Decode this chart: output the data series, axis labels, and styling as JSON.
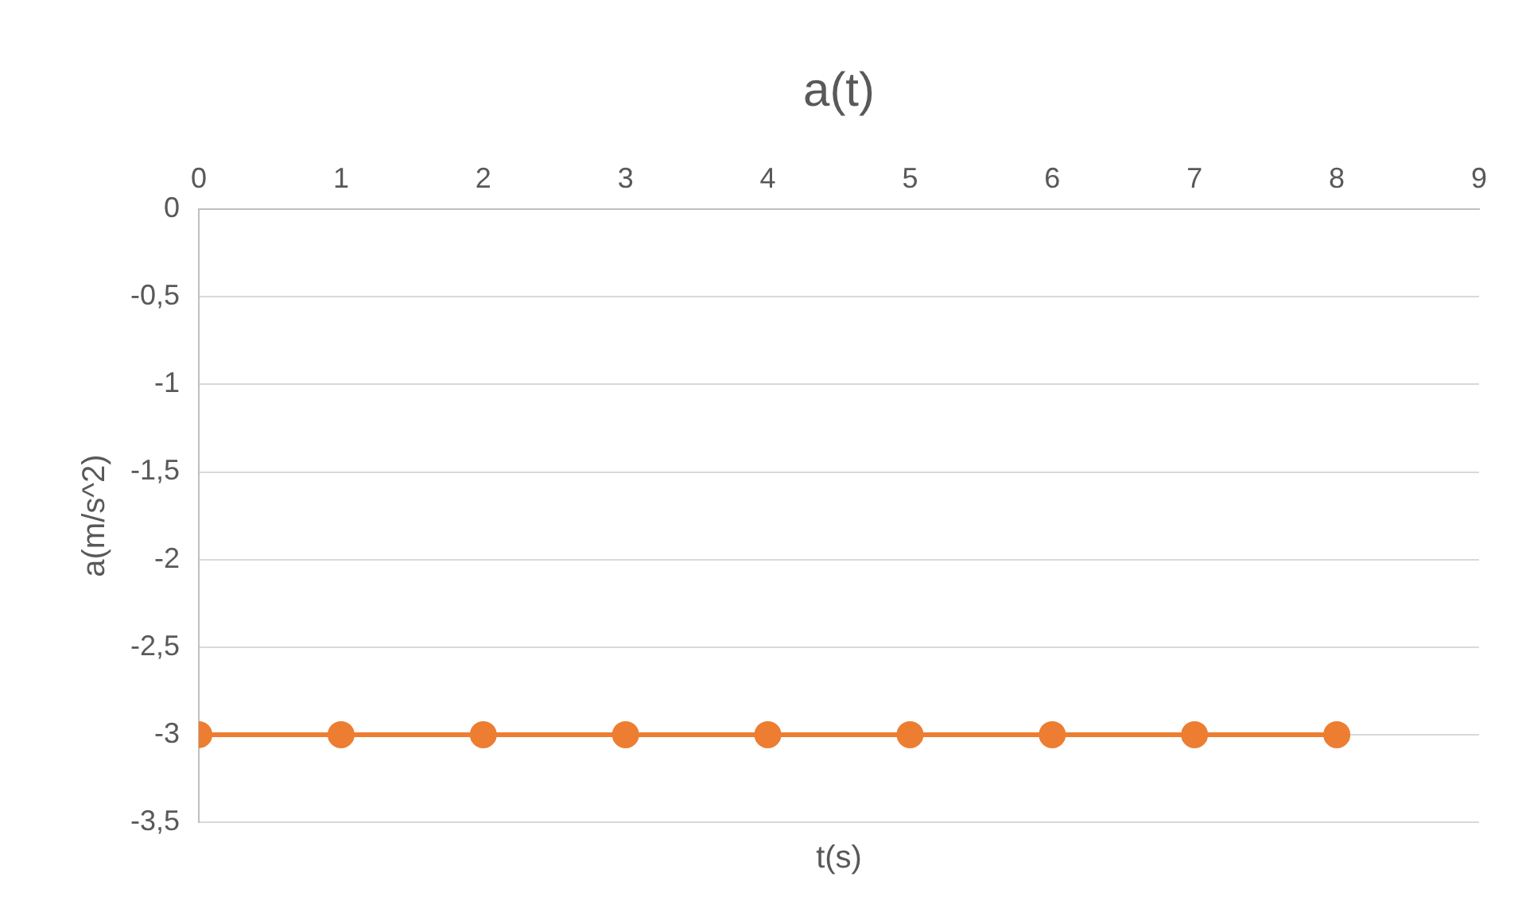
{
  "chart_data": {
    "type": "line",
    "title": "a(t)",
    "xlabel": "t(s)",
    "ylabel": "a(m/s^2)",
    "x": [
      0,
      1,
      2,
      3,
      4,
      5,
      6,
      7,
      8
    ],
    "series": [
      {
        "color": "#ed7d31",
        "values": [
          -3,
          -3,
          -3,
          -3,
          -3,
          -3,
          -3,
          -3,
          -3
        ]
      }
    ],
    "xlim": [
      0,
      9
    ],
    "xticks": [
      0,
      1,
      2,
      3,
      4,
      5,
      6,
      7,
      8,
      9
    ],
    "ylim": [
      -3.5,
      0
    ],
    "yticks": [
      0,
      {
        "value": -0.5,
        "label": "-0,5"
      },
      -1,
      {
        "value": -1.5,
        "label": "-1,5"
      },
      -2,
      {
        "value": -2.5,
        "label": "-2,5"
      },
      -3,
      {
        "value": -3.5,
        "label": "-3,5"
      }
    ],
    "grid": "y",
    "legend": false,
    "marker": "circle",
    "line_style": "solid"
  }
}
